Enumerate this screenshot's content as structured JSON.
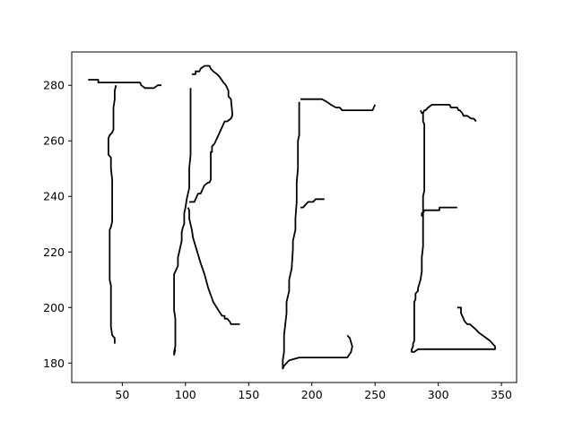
{
  "chart_data": {
    "type": "line",
    "title": "",
    "xlabel": "",
    "ylabel": "",
    "xlim": [
      10,
      362
    ],
    "ylim": [
      173,
      292
    ],
    "x_ticks": [
      50,
      100,
      150,
      200,
      250,
      300,
      350
    ],
    "y_ticks": [
      180,
      200,
      220,
      240,
      260,
      280
    ],
    "x_tick_labels": [
      "50",
      "100",
      "150",
      "200",
      "250",
      "300",
      "350"
    ],
    "y_tick_labels": [
      "180",
      "200",
      "220",
      "240",
      "260",
      "280"
    ],
    "grid": false,
    "legend": "none",
    "line_color": "#000000",
    "series": [
      {
        "points": [
          [
            23,
            282
          ],
          [
            31,
            282
          ],
          [
            31,
            281
          ],
          [
            64,
            281
          ],
          [
            65,
            280
          ],
          [
            68,
            279
          ],
          [
            75,
            279
          ],
          [
            78,
            280
          ],
          [
            81,
            280
          ]
        ]
      },
      {
        "points": [
          [
            45,
            280
          ],
          [
            44,
            278
          ],
          [
            44,
            275
          ],
          [
            43,
            272
          ],
          [
            43,
            264
          ],
          [
            42,
            263
          ],
          [
            40,
            262
          ],
          [
            39,
            261
          ],
          [
            39,
            255
          ],
          [
            41,
            254
          ],
          [
            41,
            250
          ],
          [
            42,
            246
          ],
          [
            42,
            231
          ],
          [
            41,
            229
          ],
          [
            40,
            228
          ],
          [
            40,
            210
          ],
          [
            41,
            208
          ],
          [
            41,
            193
          ],
          [
            42,
            190
          ],
          [
            44,
            189
          ],
          [
            44,
            187
          ]
        ]
      },
      {
        "points": [
          [
            104,
            279
          ],
          [
            104,
            255
          ],
          [
            103,
            250
          ],
          [
            103,
            243
          ],
          [
            102,
            241
          ],
          [
            101,
            239
          ],
          [
            100,
            236
          ],
          [
            99,
            234
          ],
          [
            99,
            230
          ],
          [
            98,
            229
          ],
          [
            97,
            227
          ],
          [
            97,
            224
          ],
          [
            96,
            222
          ],
          [
            95,
            220
          ],
          [
            94,
            218
          ],
          [
            94,
            215
          ],
          [
            93,
            214
          ],
          [
            91,
            212
          ],
          [
            91,
            199
          ],
          [
            92,
            196
          ],
          [
            92,
            186
          ],
          [
            91,
            184
          ],
          [
            91,
            183
          ],
          [
            92,
            185
          ]
        ]
      },
      {
        "points": [
          [
            105,
            284
          ],
          [
            108,
            284
          ],
          [
            108,
            285
          ],
          [
            111,
            285
          ],
          [
            112,
            286
          ],
          [
            115,
            287
          ],
          [
            119,
            287
          ],
          [
            120,
            286
          ],
          [
            122,
            285
          ],
          [
            125,
            284
          ],
          [
            127,
            283
          ],
          [
            130,
            281
          ],
          [
            132,
            280
          ],
          [
            134,
            278
          ],
          [
            134,
            276
          ],
          [
            136,
            275
          ],
          [
            137,
            270
          ],
          [
            137,
            269
          ],
          [
            136,
            268
          ],
          [
            133,
            267
          ],
          [
            131,
            267
          ],
          [
            130,
            266
          ],
          [
            128,
            264
          ],
          [
            126,
            262
          ],
          [
            124,
            260
          ],
          [
            123,
            259
          ],
          [
            121,
            258
          ],
          [
            121,
            256
          ],
          [
            120,
            256
          ],
          [
            120,
            246
          ],
          [
            119,
            245
          ],
          [
            118,
            245
          ],
          [
            115,
            244
          ],
          [
            114,
            243
          ],
          [
            112,
            241
          ],
          [
            110,
            241
          ],
          [
            108,
            239
          ],
          [
            107,
            238
          ],
          [
            103,
            238
          ]
        ]
      },
      {
        "points": [
          [
            102,
            236
          ],
          [
            103,
            235
          ],
          [
            103,
            232
          ],
          [
            105,
            228
          ],
          [
            106,
            225
          ],
          [
            108,
            222
          ],
          [
            110,
            219
          ],
          [
            112,
            216
          ],
          [
            115,
            212
          ],
          [
            118,
            207
          ],
          [
            122,
            202
          ],
          [
            126,
            199
          ],
          [
            129,
            197
          ],
          [
            131,
            197
          ],
          [
            131,
            196
          ],
          [
            133,
            196
          ],
          [
            135,
            195
          ],
          [
            136,
            194
          ],
          [
            143,
            194
          ]
        ]
      },
      {
        "points": [
          [
            190,
            274
          ],
          [
            190,
            262
          ],
          [
            189,
            260
          ],
          [
            189,
            250
          ],
          [
            188,
            245
          ],
          [
            188,
            238
          ],
          [
            187,
            232
          ],
          [
            187,
            228
          ],
          [
            185,
            224
          ],
          [
            185,
            221
          ],
          [
            184,
            214
          ],
          [
            183,
            212
          ],
          [
            182,
            210
          ],
          [
            182,
            206
          ],
          [
            180,
            202
          ],
          [
            180,
            198
          ],
          [
            179,
            194
          ],
          [
            178,
            190
          ],
          [
            178,
            184
          ],
          [
            177,
            181
          ],
          [
            177,
            178
          ],
          [
            178,
            179
          ],
          [
            180,
            180
          ],
          [
            182,
            181
          ],
          [
            190,
            182
          ],
          [
            228,
            182
          ],
          [
            231,
            184
          ],
          [
            232,
            186
          ],
          [
            230,
            189
          ],
          [
            228,
            190
          ]
        ]
      },
      {
        "points": [
          [
            191,
            275
          ],
          [
            208,
            275
          ],
          [
            212,
            274
          ],
          [
            215,
            273
          ],
          [
            219,
            272
          ],
          [
            222,
            272
          ],
          [
            224,
            271
          ],
          [
            248,
            271
          ],
          [
            249,
            272
          ],
          [
            250,
            273
          ]
        ]
      },
      {
        "points": [
          [
            191,
            236
          ],
          [
            193,
            236
          ],
          [
            195,
            237
          ],
          [
            197,
            238
          ],
          [
            201,
            238
          ],
          [
            203,
            239
          ],
          [
            210,
            239
          ]
        ]
      },
      {
        "points": [
          [
            286,
            271
          ],
          [
            287,
            270
          ],
          [
            288,
            270
          ],
          [
            288,
            269
          ],
          [
            288,
            267
          ],
          [
            289,
            266
          ],
          [
            289,
            242
          ],
          [
            288,
            240
          ],
          [
            288,
            234
          ],
          [
            287,
            234
          ],
          [
            287,
            233
          ],
          [
            288,
            233
          ],
          [
            288,
            234
          ],
          [
            289,
            235
          ],
          [
            301,
            235
          ],
          [
            301,
            236
          ],
          [
            315,
            236
          ]
        ]
      },
      {
        "points": [
          [
            288,
            270
          ],
          [
            289,
            271
          ],
          [
            289,
            271
          ],
          [
            290,
            271
          ],
          [
            292,
            272
          ],
          [
            295,
            273
          ],
          [
            309,
            273
          ],
          [
            310,
            272
          ],
          [
            312,
            272
          ],
          [
            315,
            272
          ],
          [
            316,
            271
          ],
          [
            317,
            271
          ],
          [
            319,
            270
          ],
          [
            320,
            269
          ],
          [
            323,
            269
          ],
          [
            326,
            268
          ],
          [
            328,
            268
          ],
          [
            330,
            267
          ]
        ]
      },
      {
        "points": [
          [
            288,
            234
          ],
          [
            288,
            222
          ],
          [
            287,
            218
          ],
          [
            287,
            213
          ],
          [
            286,
            210
          ],
          [
            284,
            207
          ],
          [
            284,
            206
          ],
          [
            282,
            205
          ],
          [
            282,
            203
          ],
          [
            281,
            202
          ],
          [
            281,
            188
          ],
          [
            280,
            187
          ],
          [
            280,
            186
          ],
          [
            279,
            185
          ],
          [
            279,
            184
          ],
          [
            281,
            184
          ],
          [
            284,
            185
          ],
          [
            345,
            185
          ],
          [
            345,
            186
          ],
          [
            343,
            187
          ],
          [
            341,
            188
          ],
          [
            338,
            189
          ],
          [
            332,
            191
          ],
          [
            330,
            192
          ],
          [
            325,
            194
          ],
          [
            323,
            194
          ],
          [
            321,
            195
          ],
          [
            320,
            196
          ],
          [
            318,
            198
          ],
          [
            318,
            200
          ],
          [
            315,
            200
          ]
        ]
      }
    ]
  }
}
